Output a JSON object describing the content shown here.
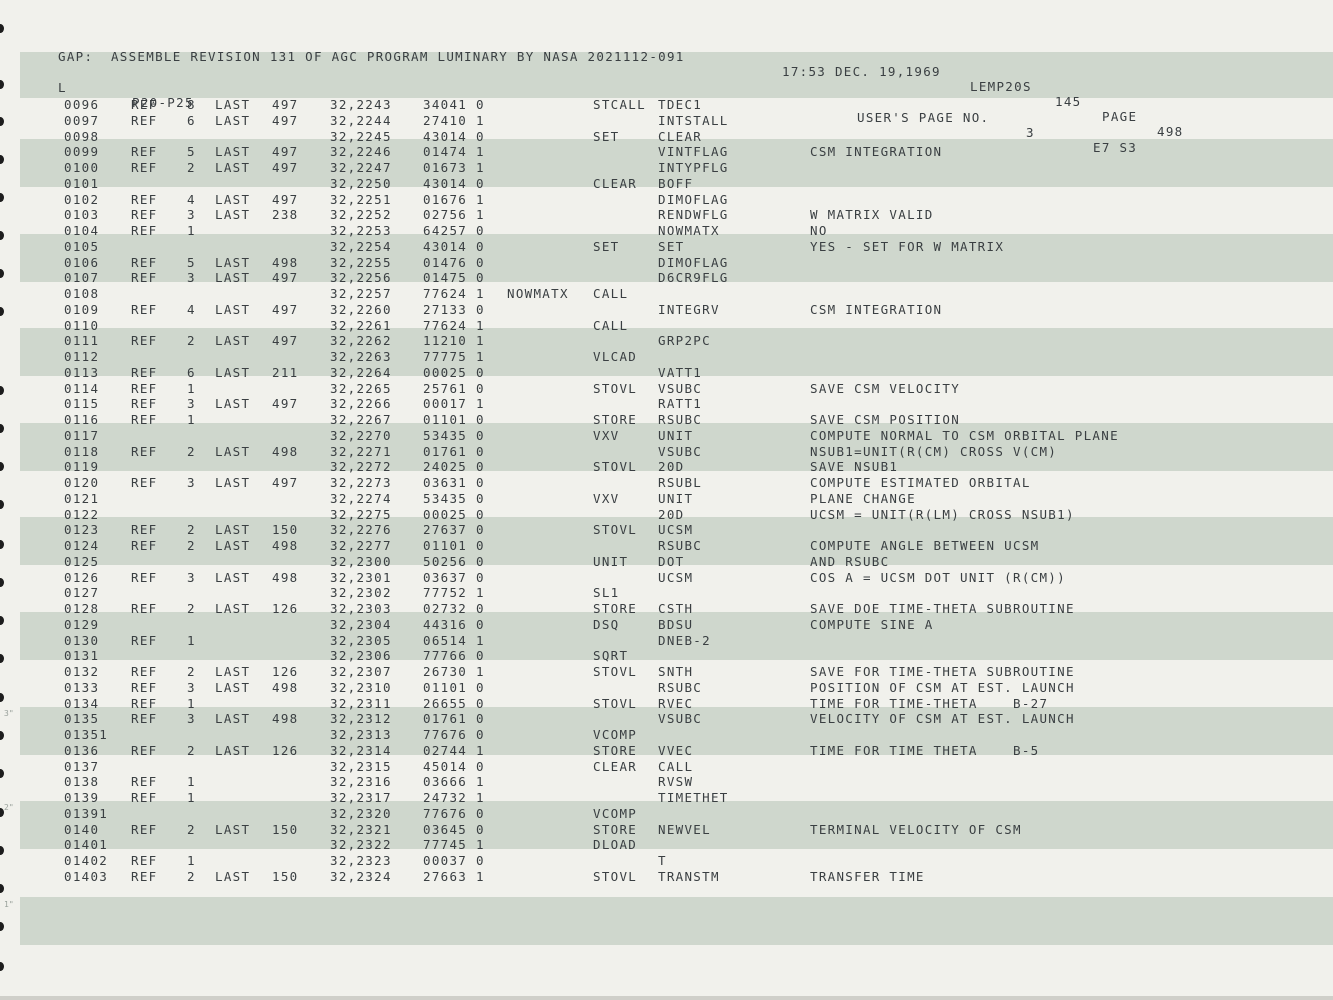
{
  "header": {
    "left": "GAP:  ASSEMBLE REVISION 131 OF AGC PROGRAM LUMINARY BY NASA 2021112-091",
    "time": "17:53 DEC. 19,1969",
    "job": "LEMP20S",
    "number": "145",
    "page_label": "PAGE",
    "page_number": "498"
  },
  "subheader": {
    "flag": "L",
    "section": "P20-P25",
    "users_page_label": "USER'S PAGE NO.",
    "users_page_number": "3",
    "code": "E7 S3"
  },
  "margin_marks": [
    "3\"",
    "2\"",
    "1\""
  ],
  "rows": [
    {
      "line": "0096",
      "ref": "REF",
      "cnt": "8",
      "last": "LAST",
      "page": "497",
      "addr": "32,2243",
      "word": "34041 0",
      "label": "",
      "op": "STCALL",
      "operand": "TDEC1",
      "comment": ""
    },
    {
      "line": "0097",
      "ref": "REF",
      "cnt": "6",
      "last": "LAST",
      "page": "497",
      "addr": "32,2244",
      "word": "27410 1",
      "label": "",
      "op": "",
      "operand": "INTSTALL",
      "comment": ""
    },
    {
      "line": "0098",
      "ref": "",
      "cnt": "",
      "last": "",
      "page": "",
      "addr": "32,2245",
      "word": "43014 0",
      "label": "",
      "op": "SET",
      "operand": "CLEAR",
      "comment": ""
    },
    {
      "line": "0099",
      "ref": "REF",
      "cnt": "5",
      "last": "LAST",
      "page": "497",
      "addr": "32,2246",
      "word": "01474 1",
      "label": "",
      "op": "",
      "operand": "VINTFLAG",
      "comment": "CSM INTEGRATION"
    },
    {
      "line": "0100",
      "ref": "REF",
      "cnt": "2",
      "last": "LAST",
      "page": "497",
      "addr": "32,2247",
      "word": "01673 1",
      "label": "",
      "op": "",
      "operand": "INTYPFLG",
      "comment": ""
    },
    {
      "line": "0101",
      "ref": "",
      "cnt": "",
      "last": "",
      "page": "",
      "addr": "32,2250",
      "word": "43014 0",
      "label": "",
      "op": "CLEAR",
      "operand": "BOFF",
      "comment": ""
    },
    {
      "line": "0102",
      "ref": "REF",
      "cnt": "4",
      "last": "LAST",
      "page": "497",
      "addr": "32,2251",
      "word": "01676 1",
      "label": "",
      "op": "",
      "operand": "DIMOFLAG",
      "comment": ""
    },
    {
      "line": "0103",
      "ref": "REF",
      "cnt": "3",
      "last": "LAST",
      "page": "238",
      "addr": "32,2252",
      "word": "02756 1",
      "label": "",
      "op": "",
      "operand": "RENDWFLG",
      "comment": "W MATRIX VALID"
    },
    {
      "line": "0104",
      "ref": "REF",
      "cnt": "1",
      "last": "",
      "page": "",
      "addr": "32,2253",
      "word": "64257 0",
      "label": "",
      "op": "",
      "operand": "NOWMATX",
      "comment": "NO"
    },
    {
      "line": "0105",
      "ref": "",
      "cnt": "",
      "last": "",
      "page": "",
      "addr": "32,2254",
      "word": "43014 0",
      "label": "",
      "op": "SET",
      "operand": "SET",
      "comment": "YES - SET FOR W MATRIX"
    },
    {
      "line": "0106",
      "ref": "REF",
      "cnt": "5",
      "last": "LAST",
      "page": "498",
      "addr": "32,2255",
      "word": "01476 0",
      "label": "",
      "op": "",
      "operand": "DIMOFLAG",
      "comment": ""
    },
    {
      "line": "0107",
      "ref": "REF",
      "cnt": "3",
      "last": "LAST",
      "page": "497",
      "addr": "32,2256",
      "word": "01475 0",
      "label": "",
      "op": "",
      "operand": "D6CR9FLG",
      "comment": ""
    },
    {
      "line": "0108",
      "ref": "",
      "cnt": "",
      "last": "",
      "page": "",
      "addr": "32,2257",
      "word": "77624 1",
      "label": "NOWMATX",
      "op": "CALL",
      "operand": "",
      "comment": ""
    },
    {
      "line": "0109",
      "ref": "REF",
      "cnt": "4",
      "last": "LAST",
      "page": "497",
      "addr": "32,2260",
      "word": "27133 0",
      "label": "",
      "op": "",
      "operand": "INTEGRV",
      "comment": "CSM INTEGRATION"
    },
    {
      "line": "0110",
      "ref": "",
      "cnt": "",
      "last": "",
      "page": "",
      "addr": "32,2261",
      "word": "77624 1",
      "label": "",
      "op": "CALL",
      "operand": "",
      "comment": ""
    },
    {
      "line": "0111",
      "ref": "REF",
      "cnt": "2",
      "last": "LAST",
      "page": "497",
      "addr": "32,2262",
      "word": "11210 1",
      "label": "",
      "op": "",
      "operand": "GRP2PC",
      "comment": ""
    },
    {
      "line": "0112",
      "ref": "",
      "cnt": "",
      "last": "",
      "page": "",
      "addr": "32,2263",
      "word": "77775 1",
      "label": "",
      "op": "VLCAD",
      "operand": "",
      "comment": ""
    },
    {
      "line": "0113",
      "ref": "REF",
      "cnt": "6",
      "last": "LAST",
      "page": "211",
      "addr": "32,2264",
      "word": "00025 0",
      "label": "",
      "op": "",
      "operand": "VATT1",
      "comment": ""
    },
    {
      "line": "0114",
      "ref": "REF",
      "cnt": "1",
      "last": "",
      "page": "",
      "addr": "32,2265",
      "word": "25761 0",
      "label": "",
      "op": "STOVL",
      "operand": "VSUBC",
      "comment": "SAVE CSM VELOCITY"
    },
    {
      "line": "0115",
      "ref": "REF",
      "cnt": "3",
      "last": "LAST",
      "page": "497",
      "addr": "32,2266",
      "word": "00017 1",
      "label": "",
      "op": "",
      "operand": "RATT1",
      "comment": ""
    },
    {
      "line": "0116",
      "ref": "REF",
      "cnt": "1",
      "last": "",
      "page": "",
      "addr": "32,2267",
      "word": "01101 0",
      "label": "",
      "op": "STORE",
      "operand": "RSUBC",
      "comment": "SAVE CSM POSITION"
    },
    {
      "line": "0117",
      "ref": "",
      "cnt": "",
      "last": "",
      "page": "",
      "addr": "32,2270",
      "word": "53435 0",
      "label": "",
      "op": "VXV",
      "operand": "UNIT",
      "comment": "COMPUTE NORMAL TO CSM ORBITAL PLANE"
    },
    {
      "line": "0118",
      "ref": "REF",
      "cnt": "2",
      "last": "LAST",
      "page": "498",
      "addr": "32,2271",
      "word": "01761 0",
      "label": "",
      "op": "",
      "operand": "VSUBC",
      "comment": "NSUB1=UNIT(R(CM) CROSS V(CM)"
    },
    {
      "line": "0119",
      "ref": "",
      "cnt": "",
      "last": "",
      "page": "",
      "addr": "32,2272",
      "word": "24025 0",
      "label": "",
      "op": "STOVL",
      "operand": "20D",
      "comment": "SAVE NSUB1"
    },
    {
      "line": "0120",
      "ref": "REF",
      "cnt": "3",
      "last": "LAST",
      "page": "497",
      "addr": "32,2273",
      "word": "03631 0",
      "label": "",
      "op": "",
      "operand": "RSUBL",
      "comment": "COMPUTE ESTIMATED ORBITAL"
    },
    {
      "line": "0121",
      "ref": "",
      "cnt": "",
      "last": "",
      "page": "",
      "addr": "32,2274",
      "word": "53435 0",
      "label": "",
      "op": "VXV",
      "operand": "UNIT",
      "comment": "PLANE CHANGE"
    },
    {
      "line": "0122",
      "ref": "",
      "cnt": "",
      "last": "",
      "page": "",
      "addr": "32,2275",
      "word": "00025 0",
      "label": "",
      "op": "",
      "operand": "20D",
      "comment": "UCSM = UNIT(R(LM) CROSS NSUB1)"
    },
    {
      "line": "0123",
      "ref": "REF",
      "cnt": "2",
      "last": "LAST",
      "page": "150",
      "addr": "32,2276",
      "word": "27637 0",
      "label": "",
      "op": "STOVL",
      "operand": "UCSM",
      "comment": ""
    },
    {
      "line": "0124",
      "ref": "REF",
      "cnt": "2",
      "last": "LAST",
      "page": "498",
      "addr": "32,2277",
      "word": "01101 0",
      "label": "",
      "op": "",
      "operand": "RSUBC",
      "comment": "COMPUTE ANGLE BETWEEN UCSM"
    },
    {
      "line": "0125",
      "ref": "",
      "cnt": "",
      "last": "",
      "page": "",
      "addr": "32,2300",
      "word": "50256 0",
      "label": "",
      "op": "UNIT",
      "operand": "DOT",
      "comment": "AND RSUBC"
    },
    {
      "line": "0126",
      "ref": "REF",
      "cnt": "3",
      "last": "LAST",
      "page": "498",
      "addr": "32,2301",
      "word": "03637 0",
      "label": "",
      "op": "",
      "operand": "UCSM",
      "comment": "COS A = UCSM DOT UNIT (R(CM))"
    },
    {
      "line": "0127",
      "ref": "",
      "cnt": "",
      "last": "",
      "page": "",
      "addr": "32,2302",
      "word": "77752 1",
      "label": "",
      "op": "SL1",
      "operand": "",
      "comment": ""
    },
    {
      "line": "0128",
      "ref": "REF",
      "cnt": "2",
      "last": "LAST",
      "page": "126",
      "addr": "32,2303",
      "word": "02732 0",
      "label": "",
      "op": "STORE",
      "operand": "CSTH",
      "comment": "SAVE DOE TIME-THETA SUBROUTINE"
    },
    {
      "line": "0129",
      "ref": "",
      "cnt": "",
      "last": "",
      "page": "",
      "addr": "32,2304",
      "word": "44316 0",
      "label": "",
      "op": "DSQ",
      "operand": "BDSU",
      "comment": "COMPUTE SINE A"
    },
    {
      "line": "0130",
      "ref": "REF",
      "cnt": "1",
      "last": "",
      "page": "",
      "addr": "32,2305",
      "word": "06514 1",
      "label": "",
      "op": "",
      "operand": "DNEB-2",
      "comment": ""
    },
    {
      "line": "0131",
      "ref": "",
      "cnt": "",
      "last": "",
      "page": "",
      "addr": "32,2306",
      "word": "77766 0",
      "label": "",
      "op": "SQRT",
      "operand": "",
      "comment": ""
    },
    {
      "line": "0132",
      "ref": "REF",
      "cnt": "2",
      "last": "LAST",
      "page": "126",
      "addr": "32,2307",
      "word": "26730 1",
      "label": "",
      "op": "STOVL",
      "operand": "SNTH",
      "comment": "SAVE FOR TIME-THETA SUBROUTINE"
    },
    {
      "line": "0133",
      "ref": "REF",
      "cnt": "3",
      "last": "LAST",
      "page": "498",
      "addr": "32,2310",
      "word": "01101 0",
      "label": "",
      "op": "",
      "operand": "RSUBC",
      "comment": "POSITION OF CSM AT EST. LAUNCH"
    },
    {
      "line": "0134",
      "ref": "REF",
      "cnt": "1",
      "last": "",
      "page": "",
      "addr": "32,2311",
      "word": "26655 0",
      "label": "",
      "op": "STOVL",
      "operand": "RVEC",
      "comment": "TIME FOR TIME-THETA    B-27"
    },
    {
      "line": "0135",
      "ref": "REF",
      "cnt": "3",
      "last": "LAST",
      "page": "498",
      "addr": "32,2312",
      "word": "01761 0",
      "label": "",
      "op": "",
      "operand": "VSUBC",
      "comment": "VELOCITY OF CSM AT EST. LAUNCH"
    },
    {
      "line": "01351",
      "ref": "",
      "cnt": "",
      "last": "",
      "page": "",
      "addr": "32,2313",
      "word": "77676 0",
      "label": "",
      "op": "VCOMP",
      "operand": "",
      "comment": ""
    },
    {
      "line": "0136",
      "ref": "REF",
      "cnt": "2",
      "last": "LAST",
      "page": "126",
      "addr": "32,2314",
      "word": "02744 1",
      "label": "",
      "op": "STORE",
      "operand": "VVEC",
      "comment": "TIME FOR TIME THETA    B-5"
    },
    {
      "line": "0137",
      "ref": "",
      "cnt": "",
      "last": "",
      "page": "",
      "addr": "32,2315",
      "word": "45014 0",
      "label": "",
      "op": "CLEAR",
      "operand": "CALL",
      "comment": ""
    },
    {
      "line": "0138",
      "ref": "REF",
      "cnt": "1",
      "last": "",
      "page": "",
      "addr": "32,2316",
      "word": "03666 1",
      "label": "",
      "op": "",
      "operand": "RVSW",
      "comment": ""
    },
    {
      "line": "0139",
      "ref": "REF",
      "cnt": "1",
      "last": "",
      "page": "",
      "addr": "32,2317",
      "word": "24732 1",
      "label": "",
      "op": "",
      "operand": "TIMETHET",
      "comment": ""
    },
    {
      "line": "01391",
      "ref": "",
      "cnt": "",
      "last": "",
      "page": "",
      "addr": "32,2320",
      "word": "77676 0",
      "label": "",
      "op": "VCOMP",
      "operand": "",
      "comment": ""
    },
    {
      "line": "0140",
      "ref": "REF",
      "cnt": "2",
      "last": "LAST",
      "page": "150",
      "addr": "32,2321",
      "word": "03645 0",
      "label": "",
      "op": "STORE",
      "operand": "NEWVEL",
      "comment": "TERMINAL VELOCITY OF CSM"
    },
    {
      "line": "01401",
      "ref": "",
      "cnt": "",
      "last": "",
      "page": "",
      "addr": "32,2322",
      "word": "77745 1",
      "label": "",
      "op": "DLOAD",
      "operand": "",
      "comment": ""
    },
    {
      "line": "01402",
      "ref": "REF",
      "cnt": "1",
      "last": "",
      "page": "",
      "addr": "32,2323",
      "word": "00037 0",
      "label": "",
      "op": "",
      "operand": "T",
      "comment": ""
    },
    {
      "line": "01403",
      "ref": "REF",
      "cnt": "2",
      "last": "LAST",
      "page": "150",
      "addr": "32,2324",
      "word": "27663 1",
      "label": "",
      "op": "STOVL",
      "operand": "TRANSTM",
      "comment": "TRANSFER TIME"
    }
  ]
}
